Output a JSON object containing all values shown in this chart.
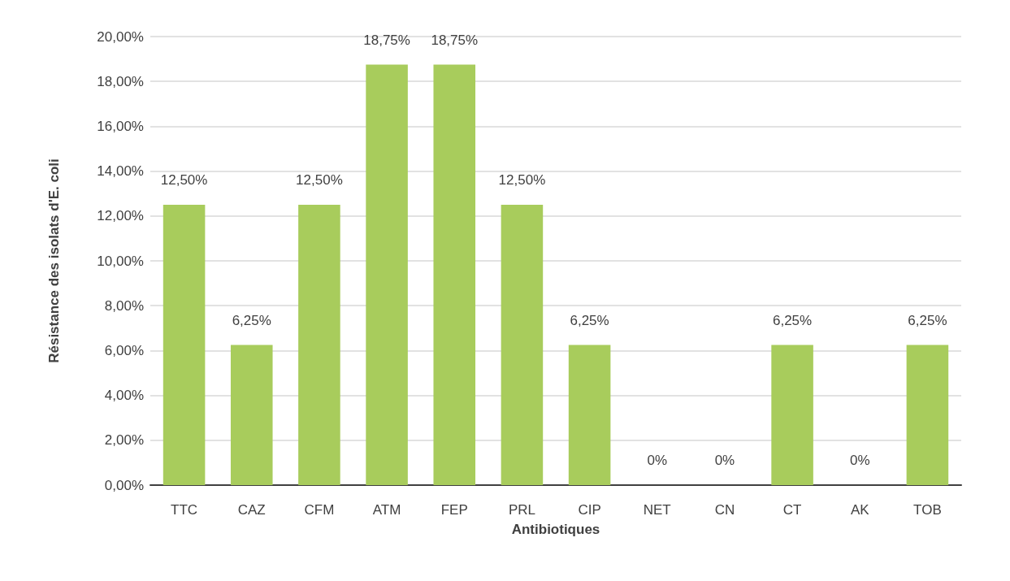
{
  "chart_data": {
    "type": "bar",
    "xlabel": "Antibiotiques",
    "ylabel": "Résistance des isolats d'E. coli",
    "categories": [
      "TTC",
      "CAZ",
      "CFM",
      "ATM",
      "FEP",
      "PRL",
      "CIP",
      "NET",
      "CN",
      "CT",
      "AK",
      "TOB"
    ],
    "values": [
      12.5,
      6.25,
      12.5,
      18.75,
      18.75,
      12.5,
      6.25,
      0,
      0,
      6.25,
      0,
      6.25
    ],
    "value_labels": [
      "12,50%",
      "6,25%",
      "12,50%",
      "18,75%",
      "18,75%",
      "12,50%",
      "6,25%",
      "0%",
      "0%",
      "6,25%",
      "0%",
      "6,25%"
    ],
    "color": "#a8cc5c",
    "ylim": [
      0,
      20
    ],
    "yticks": [
      {
        "value": 0,
        "label": "0,00%"
      },
      {
        "value": 2,
        "label": "2,00%"
      },
      {
        "value": 4,
        "label": "4,00%"
      },
      {
        "value": 6,
        "label": "6,00%"
      },
      {
        "value": 8,
        "label": "8,00%"
      },
      {
        "value": 10,
        "label": "10,00%"
      },
      {
        "value": 12,
        "label": "12,00%"
      },
      {
        "value": 14,
        "label": "14,00%"
      },
      {
        "value": 16,
        "label": "16,00%"
      },
      {
        "value": 18,
        "label": "18,00%"
      },
      {
        "value": 20,
        "label": "20,00%"
      }
    ],
    "grid": "y"
  }
}
